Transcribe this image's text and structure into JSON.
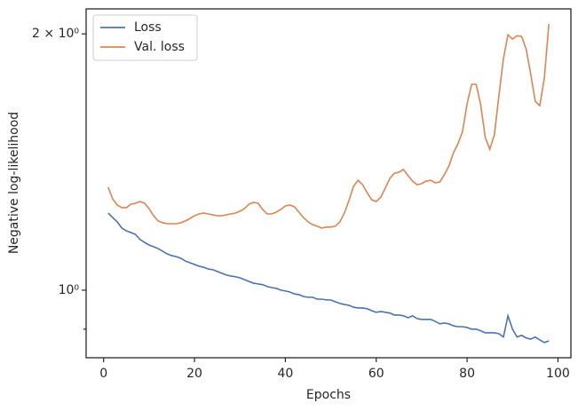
{
  "chart_data": {
    "type": "line",
    "xlabel": "Epochs",
    "ylabel": "Negative log-likelihood",
    "x": [
      1,
      2,
      3,
      4,
      5,
      6,
      7,
      8,
      9,
      10,
      11,
      12,
      13,
      14,
      15,
      16,
      17,
      18,
      19,
      20,
      21,
      22,
      23,
      24,
      25,
      26,
      27,
      28,
      29,
      30,
      31,
      32,
      33,
      34,
      35,
      36,
      37,
      38,
      39,
      40,
      41,
      42,
      43,
      44,
      45,
      46,
      47,
      48,
      49,
      50,
      51,
      52,
      53,
      54,
      55,
      56,
      57,
      58,
      59,
      60,
      61,
      62,
      63,
      64,
      65,
      66,
      67,
      68,
      69,
      70,
      71,
      72,
      73,
      74,
      75,
      76,
      77,
      78,
      79,
      80,
      81,
      82,
      83,
      84,
      85,
      86,
      87,
      88,
      89,
      90,
      91,
      92,
      93,
      94,
      95,
      96,
      97,
      98
    ],
    "series": [
      {
        "name": "Loss",
        "color": "#4c72b0",
        "values": [
          1.232,
          1.217,
          1.203,
          1.183,
          1.174,
          1.169,
          1.163,
          1.147,
          1.138,
          1.13,
          1.125,
          1.119,
          1.111,
          1.103,
          1.098,
          1.095,
          1.09,
          1.082,
          1.077,
          1.072,
          1.067,
          1.064,
          1.059,
          1.057,
          1.052,
          1.047,
          1.042,
          1.039,
          1.037,
          1.034,
          1.029,
          1.024,
          1.019,
          1.017,
          1.015,
          1.01,
          1.007,
          1.005,
          1.0,
          0.998,
          0.995,
          0.99,
          0.988,
          0.983,
          0.981,
          0.981,
          0.976,
          0.976,
          0.974,
          0.974,
          0.969,
          0.965,
          0.962,
          0.96,
          0.955,
          0.953,
          0.953,
          0.951,
          0.946,
          0.942,
          0.944,
          0.942,
          0.94,
          0.935,
          0.935,
          0.933,
          0.928,
          0.933,
          0.926,
          0.924,
          0.924,
          0.924,
          0.919,
          0.913,
          0.915,
          0.913,
          0.908,
          0.906,
          0.906,
          0.904,
          0.9,
          0.9,
          0.896,
          0.891,
          0.891,
          0.891,
          0.889,
          0.881,
          0.933,
          0.9,
          0.881,
          0.885,
          0.879,
          0.876,
          0.881,
          0.874,
          0.868,
          0.872
        ]
      },
      {
        "name": "Val. loss",
        "color": "#dd8452",
        "values": [
          1.321,
          1.28,
          1.259,
          1.25,
          1.25,
          1.262,
          1.265,
          1.271,
          1.265,
          1.247,
          1.223,
          1.206,
          1.2,
          1.197,
          1.197,
          1.197,
          1.2,
          1.206,
          1.214,
          1.223,
          1.229,
          1.232,
          1.229,
          1.226,
          1.223,
          1.223,
          1.226,
          1.229,
          1.232,
          1.238,
          1.247,
          1.262,
          1.268,
          1.265,
          1.244,
          1.229,
          1.229,
          1.235,
          1.244,
          1.256,
          1.259,
          1.253,
          1.235,
          1.217,
          1.203,
          1.194,
          1.189,
          1.183,
          1.186,
          1.186,
          1.189,
          1.203,
          1.232,
          1.274,
          1.324,
          1.346,
          1.33,
          1.302,
          1.277,
          1.271,
          1.286,
          1.318,
          1.353,
          1.372,
          1.376,
          1.386,
          1.363,
          1.343,
          1.33,
          1.334,
          1.343,
          1.346,
          1.337,
          1.34,
          1.366,
          1.399,
          1.45,
          1.486,
          1.536,
          1.655,
          1.745,
          1.745,
          1.651,
          1.511,
          1.464,
          1.522,
          1.691,
          1.87,
          1.995,
          1.972,
          1.99,
          1.986,
          1.92,
          1.795,
          1.667,
          1.647,
          1.774,
          2.054
        ]
      }
    ],
    "xlim": [
      -3.85,
      102.85
    ],
    "xticks": [
      0,
      20,
      40,
      60,
      80,
      100
    ],
    "ylim": [
      0.833,
      2.14
    ],
    "yscale": "log",
    "yticks": [
      {
        "value": 1,
        "label": "10⁰"
      },
      {
        "value": 2,
        "label": "2 × 10⁰"
      }
    ],
    "yminor_ticks": [
      0.9
    ],
    "legend": "upper left",
    "grid": false
  }
}
